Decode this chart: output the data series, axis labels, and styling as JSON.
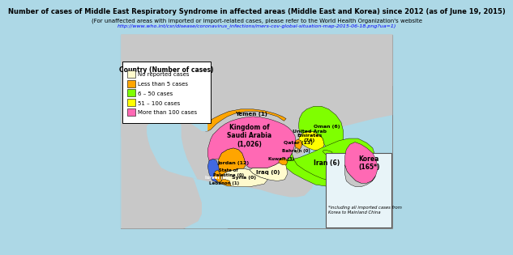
{
  "title": "Number of cases of Middle East Respiratory Syndrome in affected areas (Middle East and Korea) since 2012 (as of June 19, 2015)",
  "subtitle": "(For unaffected areas with imported or import-related cases, please refer to the World Health Organization's website",
  "url": "http://www.who.int/csr/disease/coronavirus_infections/mers-cov-global-situation-map-2015-06-18.png?ua=1)",
  "bg_color": "#ADD8E6",
  "map_bg": "#C8C8C8",
  "frame_color": "#FFFFFF",
  "legend": {
    "title": "Country (Number of cases)",
    "items": [
      {
        "label": "No reported cases",
        "color": "#FFFACD"
      },
      {
        "label": "Less than 5 cases",
        "color": "#FFA500"
      },
      {
        "label": "6 – 50 cases",
        "color": "#7FFF00"
      },
      {
        "label": "51 – 100 cases",
        "color": "#FFFF00"
      },
      {
        "label": "More than 100 cases",
        "color": "#FF69B4"
      }
    ]
  },
  "country_colors": {
    "Saudi Arabia": "#FF69B4",
    "Yemen": "#FFA500",
    "Oman": "#7FFF00",
    "UAE": "#FFFF00",
    "Qatar": "#FFA500",
    "Kuwait": "#FFA500",
    "Bahrain": "#FFFACD",
    "Iraq": "#FFFACD",
    "Iran": "#7FFF00",
    "Jordan": "#FFA500",
    "Syria": "#FFFACD",
    "Lebanon": "#FFA500",
    "Israel": "#4169E1",
    "Palestine": "#FFA500",
    "Korea": "#FF69B4",
    "Turkey_gray": "#C8C8C8",
    "Pakistan_gray": "#C8C8C8",
    "Egypt_blue": "#ADD8E6",
    "RedSea": "#ADD8E6"
  },
  "footnote": "*including all imported cases from\nKorea to Mainland China"
}
